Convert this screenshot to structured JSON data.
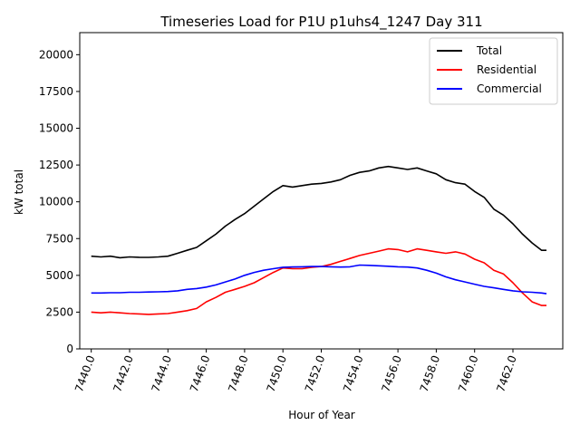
{
  "chart_data": {
    "type": "line",
    "title": "Timeseries Load for P1U p1uhs4_1247  Day 311",
    "xlabel": "Hour of Year",
    "ylabel": "kW total",
    "xlim": [
      7439.4,
      7464.6
    ],
    "ylim": [
      0,
      21500
    ],
    "xticks": [
      7440,
      7442,
      7444,
      7446,
      7448,
      7450,
      7452,
      7454,
      7456,
      7458,
      7460,
      7462
    ],
    "xtick_labels": [
      "7440.0",
      "7442.0",
      "7444.0",
      "7446.0",
      "7448.0",
      "7450.0",
      "7452.0",
      "7454.0",
      "7456.0",
      "7458.0",
      "7460.0",
      "7462.0"
    ],
    "yticks": [
      0,
      2500,
      5000,
      7500,
      10000,
      12500,
      15000,
      17500,
      20000
    ],
    "ytick_labels": [
      "0",
      "2500",
      "5000",
      "7500",
      "10000",
      "12500",
      "15000",
      "17500",
      "20000"
    ],
    "legend_position": "top-right",
    "series": [
      {
        "name": "Total",
        "color": "#000000",
        "points": [
          [
            7440,
            6300
          ],
          [
            7440.5,
            6250
          ],
          [
            7441,
            6300
          ],
          [
            7441.5,
            6200
          ],
          [
            7442,
            6250
          ],
          [
            7442.5,
            6230
          ],
          [
            7443,
            6220
          ],
          [
            7443.5,
            6250
          ],
          [
            7444,
            6300
          ],
          [
            7444.5,
            6500
          ],
          [
            7445,
            6700
          ],
          [
            7445.5,
            6900
          ],
          [
            7446,
            7350
          ],
          [
            7446.5,
            7800
          ],
          [
            7447,
            8350
          ],
          [
            7447.5,
            8800
          ],
          [
            7448,
            9200
          ],
          [
            7448.5,
            9700
          ],
          [
            7449,
            10200
          ],
          [
            7449.5,
            10700
          ],
          [
            7450,
            11100
          ],
          [
            7450.5,
            11000
          ],
          [
            7451,
            11100
          ],
          [
            7451.5,
            11200
          ],
          [
            7452,
            11250
          ],
          [
            7452.5,
            11350
          ],
          [
            7453,
            11500
          ],
          [
            7453.5,
            11800
          ],
          [
            7454,
            12000
          ],
          [
            7454.5,
            12100
          ],
          [
            7455,
            12300
          ],
          [
            7455.5,
            12400
          ],
          [
            7456,
            12300
          ],
          [
            7456.5,
            12200
          ],
          [
            7457,
            12300
          ],
          [
            7457.5,
            12100
          ],
          [
            7458,
            11900
          ],
          [
            7458.5,
            11500
          ],
          [
            7459,
            11300
          ],
          [
            7459.5,
            11200
          ],
          [
            7460,
            10700
          ],
          [
            7460.5,
            10300
          ],
          [
            7461,
            9500
          ],
          [
            7461.5,
            9100
          ],
          [
            7462,
            8500
          ],
          [
            7462.5,
            7800
          ],
          [
            7463,
            7200
          ],
          [
            7463.5,
            6700
          ],
          [
            7463.75,
            6700
          ]
        ]
      },
      {
        "name": "Residential",
        "color": "#ff0000",
        "points": [
          [
            7440,
            2500
          ],
          [
            7440.5,
            2450
          ],
          [
            7441,
            2500
          ],
          [
            7441.5,
            2450
          ],
          [
            7442,
            2400
          ],
          [
            7442.5,
            2380
          ],
          [
            7443,
            2350
          ],
          [
            7443.5,
            2380
          ],
          [
            7444,
            2400
          ],
          [
            7444.5,
            2500
          ],
          [
            7445,
            2600
          ],
          [
            7445.5,
            2750
          ],
          [
            7446,
            3200
          ],
          [
            7446.5,
            3500
          ],
          [
            7447,
            3850
          ],
          [
            7447.5,
            4050
          ],
          [
            7448,
            4250
          ],
          [
            7448.5,
            4500
          ],
          [
            7449,
            4850
          ],
          [
            7449.5,
            5200
          ],
          [
            7450,
            5500
          ],
          [
            7450.5,
            5450
          ],
          [
            7451,
            5450
          ],
          [
            7451.5,
            5550
          ],
          [
            7452,
            5600
          ],
          [
            7452.5,
            5750
          ],
          [
            7453,
            5950
          ],
          [
            7453.5,
            6150
          ],
          [
            7454,
            6350
          ],
          [
            7454.5,
            6500
          ],
          [
            7455,
            6650
          ],
          [
            7455.5,
            6800
          ],
          [
            7456,
            6750
          ],
          [
            7456.5,
            6600
          ],
          [
            7457,
            6800
          ],
          [
            7457.5,
            6700
          ],
          [
            7458,
            6600
          ],
          [
            7458.5,
            6500
          ],
          [
            7459,
            6600
          ],
          [
            7459.5,
            6450
          ],
          [
            7460,
            6100
          ],
          [
            7460.5,
            5850
          ],
          [
            7461,
            5350
          ],
          [
            7461.5,
            5100
          ],
          [
            7462,
            4500
          ],
          [
            7462.5,
            3800
          ],
          [
            7463,
            3200
          ],
          [
            7463.5,
            2950
          ],
          [
            7463.75,
            2950
          ]
        ]
      },
      {
        "name": "Commercial",
        "color": "#0000ff",
        "points": [
          [
            7440,
            3800
          ],
          [
            7440.5,
            3800
          ],
          [
            7441,
            3820
          ],
          [
            7441.5,
            3820
          ],
          [
            7442,
            3850
          ],
          [
            7442.5,
            3850
          ],
          [
            7443,
            3870
          ],
          [
            7443.5,
            3880
          ],
          [
            7444,
            3900
          ],
          [
            7444.5,
            3950
          ],
          [
            7445,
            4050
          ],
          [
            7445.5,
            4100
          ],
          [
            7446,
            4200
          ],
          [
            7446.5,
            4350
          ],
          [
            7447,
            4550
          ],
          [
            7447.5,
            4750
          ],
          [
            7448,
            5000
          ],
          [
            7448.5,
            5200
          ],
          [
            7449,
            5350
          ],
          [
            7449.5,
            5450
          ],
          [
            7450,
            5550
          ],
          [
            7450.5,
            5570
          ],
          [
            7451,
            5580
          ],
          [
            7451.5,
            5600
          ],
          [
            7452,
            5600
          ],
          [
            7452.5,
            5580
          ],
          [
            7453,
            5560
          ],
          [
            7453.5,
            5580
          ],
          [
            7454,
            5700
          ],
          [
            7454.5,
            5680
          ],
          [
            7455,
            5650
          ],
          [
            7455.5,
            5620
          ],
          [
            7456,
            5580
          ],
          [
            7456.5,
            5560
          ],
          [
            7457,
            5500
          ],
          [
            7457.5,
            5350
          ],
          [
            7458,
            5150
          ],
          [
            7458.5,
            4900
          ],
          [
            7459,
            4700
          ],
          [
            7459.5,
            4550
          ],
          [
            7460,
            4400
          ],
          [
            7460.5,
            4250
          ],
          [
            7461,
            4150
          ],
          [
            7461.5,
            4050
          ],
          [
            7462,
            3950
          ],
          [
            7462.5,
            3880
          ],
          [
            7463,
            3850
          ],
          [
            7463.5,
            3800
          ],
          [
            7463.75,
            3750
          ]
        ]
      }
    ]
  }
}
